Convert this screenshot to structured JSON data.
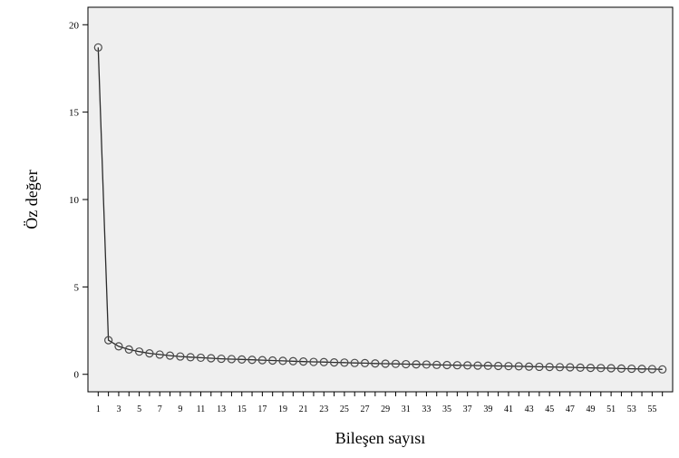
{
  "chart_data": {
    "type": "line",
    "title": "",
    "xlabel": "Bileşen sayısı",
    "ylabel": "Öz değer",
    "xlim": [
      0,
      57
    ],
    "ylim": [
      -1.0,
      21.0
    ],
    "y_ticks": [
      0,
      5,
      10,
      15,
      20
    ],
    "x_ticks": [
      1,
      3,
      5,
      7,
      9,
      11,
      13,
      15,
      17,
      19,
      21,
      23,
      25,
      27,
      29,
      31,
      33,
      35,
      37,
      39,
      41,
      43,
      45,
      47,
      49,
      51,
      53,
      55
    ],
    "grid": false,
    "legend": "none",
    "colors": {
      "plot_bg": "#efefef",
      "line": "#2b2b2b",
      "marker_stroke": "#4a4a4a"
    },
    "series": [
      {
        "x": [
          1,
          2,
          3,
          4,
          5,
          6,
          7,
          8,
          9,
          10,
          11,
          12,
          13,
          14,
          15,
          16,
          17,
          18,
          19,
          20,
          21,
          22,
          23,
          24,
          25,
          26,
          27,
          28,
          29,
          30,
          31,
          32,
          33,
          34,
          35,
          36,
          37,
          38,
          39,
          40,
          41,
          42,
          43,
          44,
          45,
          46,
          47,
          48,
          49,
          50,
          51,
          52,
          53,
          54,
          55,
          56
        ],
        "values": [
          18.7,
          1.95,
          1.6,
          1.42,
          1.3,
          1.2,
          1.13,
          1.07,
          1.02,
          0.98,
          0.95,
          0.92,
          0.89,
          0.87,
          0.85,
          0.83,
          0.81,
          0.79,
          0.77,
          0.75,
          0.73,
          0.71,
          0.7,
          0.68,
          0.67,
          0.65,
          0.64,
          0.62,
          0.61,
          0.6,
          0.58,
          0.57,
          0.56,
          0.54,
          0.53,
          0.52,
          0.51,
          0.5,
          0.49,
          0.48,
          0.47,
          0.46,
          0.44,
          0.43,
          0.42,
          0.41,
          0.4,
          0.38,
          0.37,
          0.36,
          0.35,
          0.33,
          0.32,
          0.31,
          0.3,
          0.28
        ]
      }
    ]
  }
}
